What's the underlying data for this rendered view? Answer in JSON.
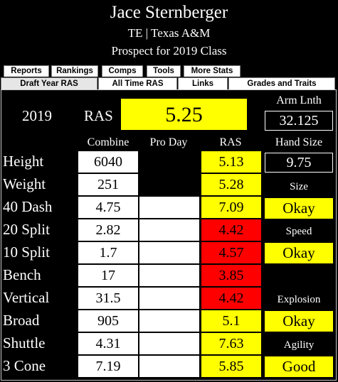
{
  "player": {
    "name": "Jace Sternberger",
    "position_school": "TE | Texas A&M",
    "prospect": "Prospect for 2019 Class"
  },
  "tabs_row1": [
    "Reports",
    "Rankings",
    "Comps",
    "Tools",
    "More Stats"
  ],
  "tabs_row2": [
    "Draft Year RAS",
    "All Time RAS",
    "Links",
    "Grades and Traits"
  ],
  "active_tab": "Draft Year RAS",
  "summary": {
    "year": "2019",
    "ras_label": "RAS",
    "ras_value": "5.25",
    "arm_length_label": "Arm Lnth",
    "arm_length_value": "32.125",
    "hand_size_label": "Hand Size",
    "hand_size_value": "9.75"
  },
  "columns": {
    "combine": "Combine",
    "pro_day": "Pro Day",
    "ras": "RAS"
  },
  "rows": [
    {
      "label": "Height",
      "combine": "6040",
      "pro_day": "",
      "ras": "5.13",
      "ras_color": "#ffff00"
    },
    {
      "label": "Weight",
      "combine": "251",
      "pro_day": "",
      "ras": "5.28",
      "ras_color": "#ffff00"
    },
    {
      "label": "40 Dash",
      "combine": "4.75",
      "pro_day": "",
      "ras": "7.09",
      "ras_color": "#ffff00"
    },
    {
      "label": "20 Split",
      "combine": "2.82",
      "pro_day": "",
      "ras": "4.42",
      "ras_color": "#ff0000"
    },
    {
      "label": "10 Split",
      "combine": "1.7",
      "pro_day": "",
      "ras": "4.57",
      "ras_color": "#ff0000"
    },
    {
      "label": "Bench",
      "combine": "17",
      "pro_day": "",
      "ras": "3.85",
      "ras_color": "#ff0000"
    },
    {
      "label": "Vertical",
      "combine": "31.5",
      "pro_day": "",
      "ras": "4.42",
      "ras_color": "#ff0000"
    },
    {
      "label": "Broad",
      "combine": "905",
      "pro_day": "",
      "ras": "5.1",
      "ras_color": "#ffff00"
    },
    {
      "label": "Shuttle",
      "combine": "4.31",
      "pro_day": "",
      "ras": "7.63",
      "ras_color": "#ffff00"
    },
    {
      "label": "3 Cone",
      "combine": "7.19",
      "pro_day": "",
      "ras": "5.85",
      "ras_color": "#ffff00"
    }
  ],
  "grades": {
    "size_label": "Size",
    "size_value": "Okay",
    "speed_label": "Speed",
    "speed_value": "Okay",
    "explosion_label": "Explosion",
    "explosion_value": "Okay",
    "agility_label": "Agility",
    "agility_value": "Good"
  },
  "colors": {
    "good": "#ffff00",
    "poor": "#ff0000",
    "neutral": "#ffffff",
    "background": "#000000"
  }
}
